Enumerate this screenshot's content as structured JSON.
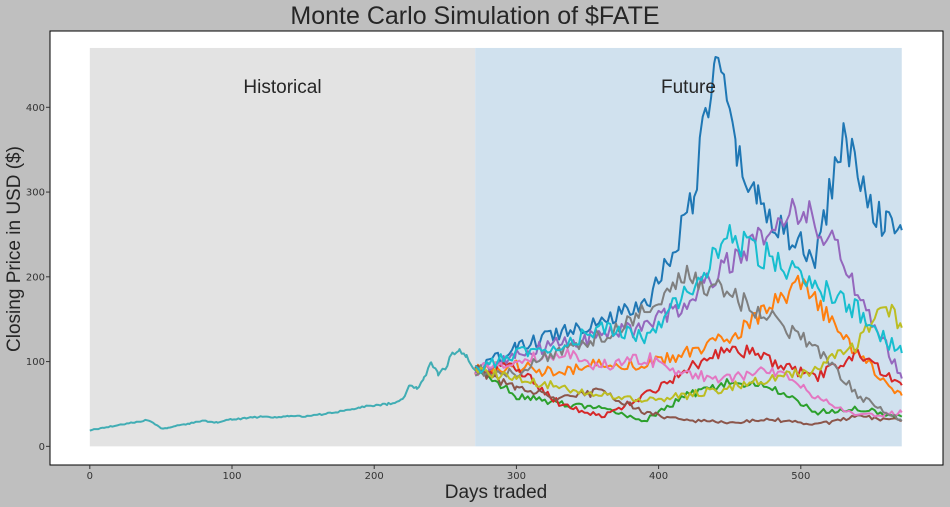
{
  "chart_data": {
    "type": "line",
    "title": "Monte Carlo Simulation of $FATE",
    "xlabel": "Days traded",
    "ylabel": "Closing Price in USD ($)",
    "xlim": [
      -28,
      600
    ],
    "ylim": [
      -22,
      490
    ],
    "xticks": [
      0,
      100,
      200,
      300,
      400,
      500
    ],
    "yticks": [
      0,
      100,
      200,
      300,
      400
    ],
    "grid": false,
    "regions": [
      {
        "label": "Historical",
        "x": [
          0,
          271
        ],
        "color": "#e3e3e3"
      },
      {
        "label": "Future",
        "x": [
          271,
          571
        ],
        "color": "#d0e1ee"
      }
    ],
    "region_top": 470,
    "historical": {
      "color": "#41adb4",
      "x": [
        0,
        10,
        20,
        30,
        40,
        46,
        50,
        55,
        60,
        70,
        80,
        90,
        100,
        110,
        120,
        130,
        140,
        150,
        160,
        170,
        180,
        190,
        200,
        210,
        220,
        225,
        230,
        235,
        240,
        245,
        250,
        255,
        260,
        265,
        271
      ],
      "y": [
        19,
        22,
        25,
        28,
        31,
        26,
        21,
        22,
        24,
        27,
        30,
        28,
        32,
        33,
        35,
        34,
        36,
        35,
        37,
        40,
        42,
        46,
        48,
        50,
        55,
        72,
        68,
        80,
        100,
        85,
        92,
        110,
        115,
        105,
        90
      ]
    },
    "series": [
      {
        "color": "#1f77b4",
        "x": [
          271,
          300,
          330,
          360,
          390,
          410,
          425,
          440,
          455,
          470,
          490,
          510,
          530,
          545,
          560,
          571
        ],
        "y": [
          90,
          115,
          135,
          150,
          165,
          230,
          300,
          460,
          340,
          290,
          250,
          220,
          370,
          300,
          260,
          255
        ]
      },
      {
        "color": "#ff7f0e",
        "x": [
          271,
          300,
          330,
          360,
          390,
          420,
          450,
          480,
          500,
          520,
          540,
          560,
          571
        ],
        "y": [
          90,
          95,
          85,
          100,
          95,
          110,
          130,
          165,
          190,
          150,
          110,
          75,
          60
        ]
      },
      {
        "color": "#2ca02c",
        "x": [
          271,
          300,
          330,
          360,
          390,
          420,
          450,
          480,
          510,
          540,
          571
        ],
        "y": [
          90,
          60,
          50,
          45,
          30,
          60,
          75,
          70,
          40,
          45,
          35
        ]
      },
      {
        "color": "#d62728",
        "x": [
          271,
          300,
          330,
          360,
          390,
          420,
          450,
          480,
          510,
          540,
          571
        ],
        "y": [
          90,
          95,
          50,
          35,
          60,
          90,
          120,
          100,
          80,
          110,
          72
        ]
      },
      {
        "color": "#9467bd",
        "x": [
          271,
          300,
          330,
          360,
          390,
          420,
          450,
          480,
          500,
          520,
          540,
          560,
          571
        ],
        "y": [
          90,
          110,
          120,
          130,
          140,
          170,
          220,
          260,
          280,
          250,
          180,
          120,
          80
        ]
      },
      {
        "color": "#8c564b",
        "x": [
          271,
          300,
          330,
          360,
          390,
          420,
          450,
          480,
          510,
          540,
          571
        ],
        "y": [
          90,
          70,
          55,
          65,
          40,
          30,
          28,
          32,
          25,
          35,
          30
        ]
      },
      {
        "color": "#e377c2",
        "x": [
          271,
          300,
          330,
          360,
          390,
          420,
          450,
          480,
          510,
          540,
          571
        ],
        "y": [
          90,
          100,
          110,
          95,
          105,
          85,
          80,
          90,
          60,
          35,
          40
        ]
      },
      {
        "color": "#7f7f7f",
        "x": [
          271,
          300,
          330,
          360,
          390,
          420,
          450,
          480,
          510,
          540,
          571
        ],
        "y": [
          90,
          85,
          115,
          130,
          160,
          200,
          180,
          150,
          120,
          60,
          30
        ]
      },
      {
        "color": "#bcbd22",
        "x": [
          271,
          300,
          330,
          360,
          390,
          420,
          450,
          480,
          510,
          540,
          560,
          571
        ],
        "y": [
          90,
          80,
          70,
          60,
          55,
          60,
          70,
          80,
          90,
          120,
          170,
          140
        ]
      },
      {
        "color": "#17becf",
        "x": [
          271,
          300,
          330,
          360,
          390,
          420,
          450,
          480,
          500,
          520,
          540,
          560,
          571
        ],
        "y": [
          90,
          110,
          120,
          140,
          130,
          180,
          250,
          220,
          200,
          180,
          160,
          125,
          110
        ]
      }
    ]
  }
}
